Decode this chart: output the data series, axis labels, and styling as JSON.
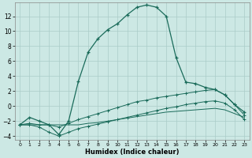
{
  "bg_color": "#cce8e4",
  "grid_color": "#aaccc8",
  "line_color": "#1a6b5a",
  "xlabel": "Humidex (Indice chaleur)",
  "xlim": [
    -0.5,
    23.5
  ],
  "ylim": [
    -4.5,
    13.8
  ],
  "xticks": [
    0,
    1,
    2,
    3,
    4,
    5,
    6,
    7,
    8,
    9,
    10,
    11,
    12,
    13,
    14,
    15,
    16,
    17,
    18,
    19,
    20,
    21,
    22,
    23
  ],
  "yticks": [
    -4,
    -2,
    0,
    2,
    4,
    6,
    8,
    10,
    12
  ],
  "curve1_x": [
    0,
    1,
    2,
    3,
    4,
    5,
    6,
    7,
    8,
    9,
    10,
    11,
    12,
    13,
    14,
    15,
    16,
    17,
    18,
    19,
    20,
    21,
    22,
    23
  ],
  "curve1_y": [
    -2.5,
    -1.5,
    -2.0,
    -2.5,
    -3.8,
    -2.0,
    3.3,
    7.2,
    9.0,
    10.2,
    11.0,
    12.2,
    13.2,
    13.5,
    13.2,
    12.0,
    6.5,
    3.2,
    3.0,
    2.5,
    2.2,
    1.5,
    0.2,
    -0.8
  ],
  "curve2_x": [
    0,
    1,
    2,
    3,
    4,
    5,
    6,
    7,
    8,
    9,
    10,
    11,
    12,
    13,
    14,
    15,
    16,
    17,
    18,
    19,
    20,
    21,
    22,
    23
  ],
  "curve2_y": [
    -2.5,
    -2.3,
    -2.5,
    -2.5,
    -2.8,
    -2.3,
    -1.8,
    -1.4,
    -1.0,
    -0.6,
    -0.2,
    0.2,
    0.6,
    0.8,
    1.1,
    1.3,
    1.5,
    1.7,
    1.9,
    2.1,
    2.2,
    1.5,
    0.2,
    -1.2
  ],
  "curve3_x": [
    0,
    1,
    2,
    3,
    4,
    5,
    6,
    7,
    8,
    9,
    10,
    11,
    12,
    13,
    14,
    15,
    16,
    17,
    18,
    19,
    20,
    21,
    22,
    23
  ],
  "curve3_y": [
    -2.5,
    -2.5,
    -2.8,
    -3.5,
    -4.0,
    -3.5,
    -3.0,
    -2.7,
    -2.4,
    -2.1,
    -1.8,
    -1.5,
    -1.2,
    -0.9,
    -0.6,
    -0.3,
    -0.1,
    0.2,
    0.4,
    0.6,
    0.7,
    0.4,
    -0.5,
    -1.8
  ],
  "curve4_x": [
    0,
    1,
    2,
    3,
    4,
    5,
    6,
    7,
    8,
    9,
    10,
    11,
    12,
    13,
    14,
    15,
    16,
    17,
    18,
    19,
    20,
    21,
    22,
    23
  ],
  "curve4_y": [
    -2.5,
    -2.5,
    -2.5,
    -2.5,
    -2.5,
    -2.5,
    -2.5,
    -2.3,
    -2.2,
    -2.0,
    -1.8,
    -1.6,
    -1.4,
    -1.2,
    -1.0,
    -0.8,
    -0.7,
    -0.6,
    -0.5,
    -0.4,
    -0.3,
    -0.5,
    -1.0,
    -1.5
  ]
}
